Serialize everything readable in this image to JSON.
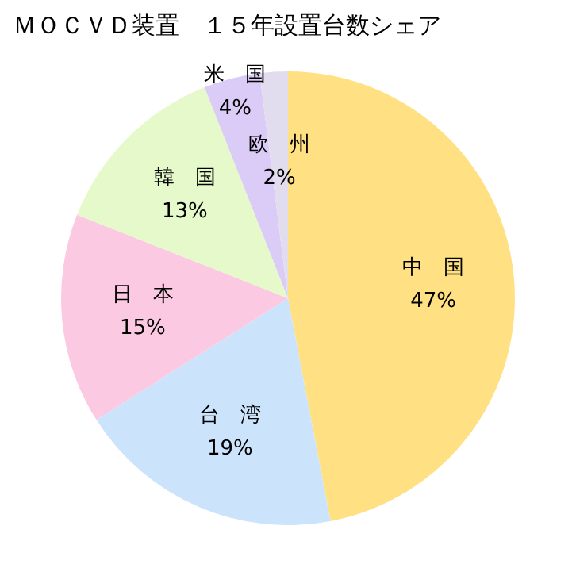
{
  "chart_data": {
    "type": "pie",
    "title": "ＭＯＣＶＤ装置　１５年設置台数シェア",
    "categories": [
      "中　国",
      "台　湾",
      "日　本",
      "韓　国",
      "米　国",
      "欧　州"
    ],
    "values": [
      47,
      19,
      15,
      13,
      4,
      2
    ],
    "value_labels": [
      "47%",
      "19%",
      "15%",
      "13%",
      "4%",
      "2%"
    ],
    "colors": [
      "#ffe184",
      "#cce4fb",
      "#fcc9e2",
      "#e6f9cb",
      "#dacbf7",
      "#e2ddee"
    ],
    "legend": false
  }
}
